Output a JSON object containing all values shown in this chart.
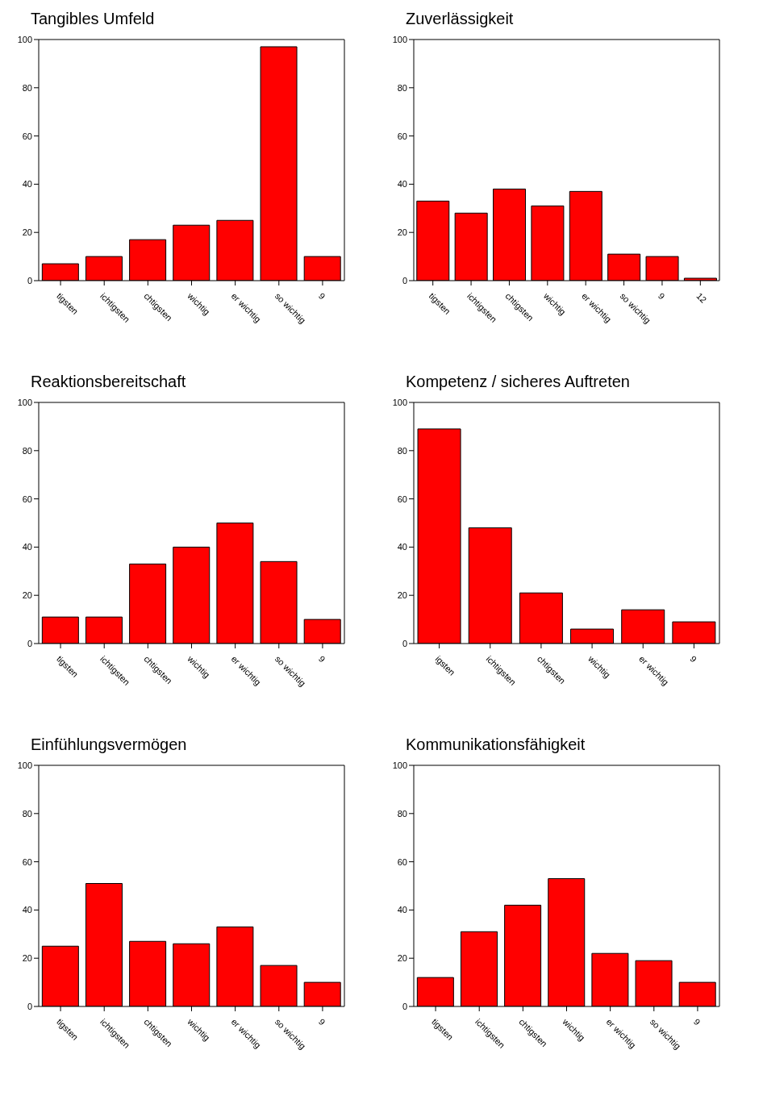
{
  "chart_data": [
    {
      "type": "bar",
      "title": "Tangibles Umfeld",
      "categories": [
        "tigsten",
        "ichtigsten",
        "chtigsten",
        "wichtig",
        "er wichtig",
        "so wichtig",
        "9"
      ],
      "values": [
        7,
        10,
        17,
        23,
        25,
        97,
        10
      ],
      "color": "#ff0000",
      "ylim": [
        0,
        100
      ],
      "yticks": [
        0,
        20,
        40,
        60,
        80,
        100
      ]
    },
    {
      "type": "bar",
      "title": "Zuverlässigkeit",
      "categories": [
        "tigsten",
        "ichtigsten",
        "chtigsten",
        "wichtig",
        "er wichtig",
        "so wichtig",
        "9",
        "12"
      ],
      "values": [
        33,
        28,
        38,
        31,
        37,
        11,
        10,
        1
      ],
      "color": "#ff0000",
      "ylim": [
        0,
        100
      ],
      "yticks": [
        0,
        20,
        40,
        60,
        80,
        100
      ]
    },
    {
      "type": "bar",
      "title": "Reaktionsbereitschaft",
      "categories": [
        "tigsten",
        "ichtigsten",
        "chtigsten",
        "wichtig",
        "er wichtig",
        "so wichtig",
        "9"
      ],
      "values": [
        11,
        11,
        33,
        40,
        50,
        34,
        10
      ],
      "color": "#ff0000",
      "ylim": [
        0,
        100
      ],
      "yticks": [
        0,
        20,
        40,
        60,
        80,
        100
      ]
    },
    {
      "type": "bar",
      "title": "Kompetenz / sicheres Auftreten",
      "categories": [
        "igsten",
        "ichtigsten",
        "chtigsten",
        "wichtig",
        "er wichtig",
        "9"
      ],
      "values": [
        89,
        48,
        21,
        6,
        14,
        9
      ],
      "color": "#ff0000",
      "ylim": [
        0,
        100
      ],
      "yticks": [
        0,
        20,
        40,
        60,
        80,
        100
      ]
    },
    {
      "type": "bar",
      "title": "Einfühlungsvermögen",
      "categories": [
        "tigsten",
        "ichtigsten",
        "chtigsten",
        "wichtig",
        "er wichtig",
        "so wichtig",
        "9"
      ],
      "values": [
        25,
        51,
        27,
        26,
        33,
        17,
        10
      ],
      "color": "#ff0000",
      "ylim": [
        0,
        100
      ],
      "yticks": [
        0,
        20,
        40,
        60,
        80,
        100
      ]
    },
    {
      "type": "bar",
      "title": "Kommunikationsfähigkeit",
      "categories": [
        "tigsten",
        "ichtigsten",
        "chtigsten",
        "wichtig",
        "er wichtig",
        "so wichtig",
        "9"
      ],
      "values": [
        12,
        31,
        42,
        53,
        22,
        19,
        10
      ],
      "color": "#ff0000",
      "ylim": [
        0,
        100
      ],
      "yticks": [
        0,
        20,
        40,
        60,
        80,
        100
      ]
    }
  ]
}
